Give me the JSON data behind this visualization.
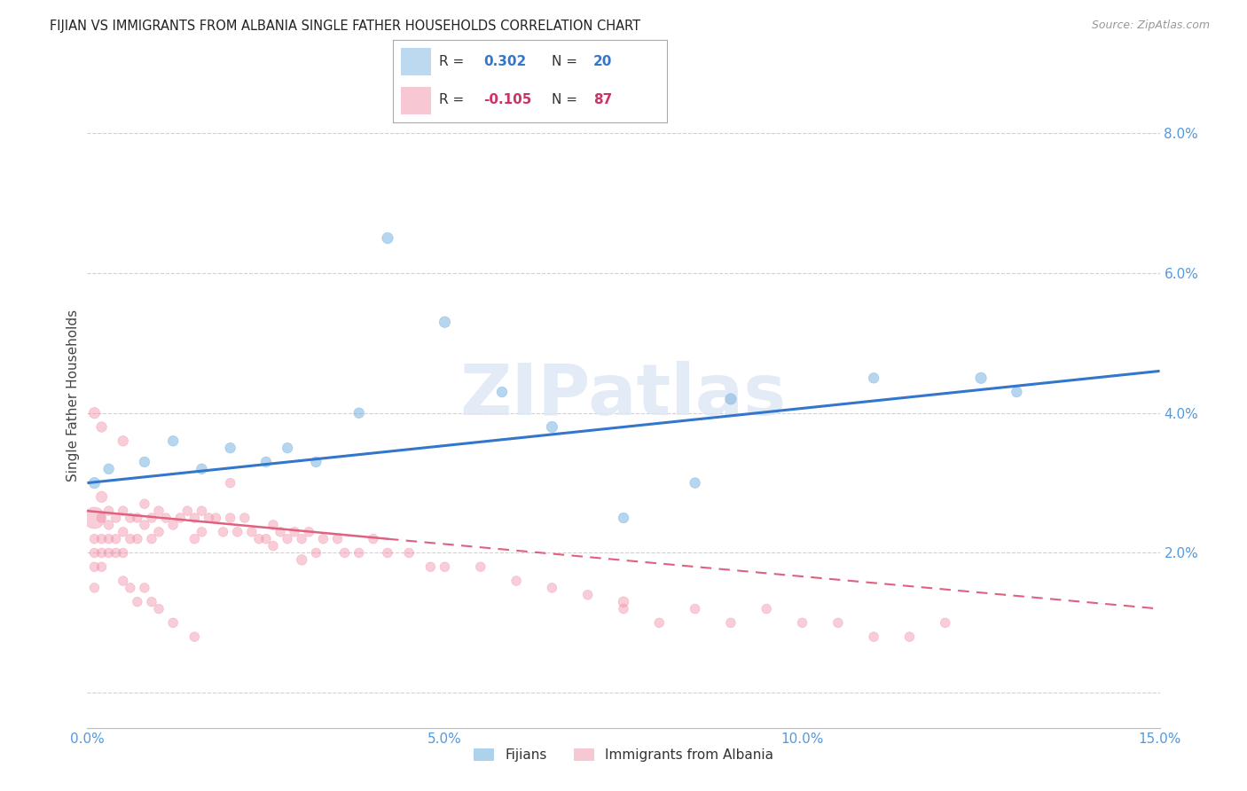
{
  "title": "FIJIAN VS IMMIGRANTS FROM ALBANIA SINGLE FATHER HOUSEHOLDS CORRELATION CHART",
  "source": "Source: ZipAtlas.com",
  "ylabel": "Single Father Households",
  "xlim": [
    0.0,
    0.15
  ],
  "ylim": [
    -0.005,
    0.09
  ],
  "xticks": [
    0.0,
    0.05,
    0.1,
    0.15
  ],
  "xtick_labels": [
    "0.0%",
    "5.0%",
    "10.0%",
    "15.0%"
  ],
  "yticks": [
    0.0,
    0.02,
    0.04,
    0.06,
    0.08
  ],
  "ytick_labels": [
    "",
    "2.0%",
    "4.0%",
    "6.0%",
    "8.0%"
  ],
  "fijian_color": "#7ab4e0",
  "albania_color": "#f090a8",
  "fijian_scatter": {
    "x": [
      0.001,
      0.003,
      0.008,
      0.012,
      0.016,
      0.02,
      0.025,
      0.028,
      0.032,
      0.038,
      0.042,
      0.05,
      0.058,
      0.065,
      0.075,
      0.085,
      0.09,
      0.11,
      0.125,
      0.13
    ],
    "y": [
      0.03,
      0.032,
      0.033,
      0.036,
      0.032,
      0.035,
      0.033,
      0.035,
      0.033,
      0.04,
      0.065,
      0.053,
      0.043,
      0.038,
      0.025,
      0.03,
      0.042,
      0.045,
      0.045,
      0.043
    ],
    "s": [
      80,
      70,
      70,
      70,
      70,
      70,
      70,
      70,
      70,
      70,
      80,
      80,
      70,
      80,
      70,
      70,
      80,
      70,
      80,
      70
    ]
  },
  "albania_scatter": {
    "x": [
      0.001,
      0.001,
      0.001,
      0.001,
      0.001,
      0.002,
      0.002,
      0.002,
      0.002,
      0.002,
      0.003,
      0.003,
      0.003,
      0.003,
      0.004,
      0.004,
      0.004,
      0.005,
      0.005,
      0.005,
      0.006,
      0.006,
      0.007,
      0.007,
      0.008,
      0.008,
      0.009,
      0.009,
      0.01,
      0.01,
      0.011,
      0.012,
      0.013,
      0.014,
      0.015,
      0.015,
      0.016,
      0.016,
      0.017,
      0.018,
      0.019,
      0.02,
      0.02,
      0.021,
      0.022,
      0.023,
      0.024,
      0.025,
      0.026,
      0.026,
      0.027,
      0.028,
      0.029,
      0.03,
      0.031,
      0.032,
      0.033,
      0.035,
      0.036,
      0.038,
      0.04,
      0.042,
      0.045,
      0.048,
      0.05,
      0.055,
      0.06,
      0.065,
      0.07,
      0.075,
      0.08,
      0.085,
      0.09,
      0.095,
      0.1,
      0.105,
      0.11,
      0.115,
      0.12,
      0.005,
      0.006,
      0.007,
      0.008,
      0.009,
      0.01,
      0.012,
      0.015
    ],
    "y": [
      0.025,
      0.022,
      0.02,
      0.018,
      0.015,
      0.028,
      0.025,
      0.022,
      0.02,
      0.018,
      0.026,
      0.024,
      0.022,
      0.02,
      0.025,
      0.022,
      0.02,
      0.026,
      0.023,
      0.02,
      0.025,
      0.022,
      0.025,
      0.022,
      0.027,
      0.024,
      0.025,
      0.022,
      0.026,
      0.023,
      0.025,
      0.024,
      0.025,
      0.026,
      0.025,
      0.022,
      0.026,
      0.023,
      0.025,
      0.025,
      0.023,
      0.03,
      0.025,
      0.023,
      0.025,
      0.023,
      0.022,
      0.022,
      0.024,
      0.021,
      0.023,
      0.022,
      0.023,
      0.022,
      0.023,
      0.02,
      0.022,
      0.022,
      0.02,
      0.02,
      0.022,
      0.02,
      0.02,
      0.018,
      0.018,
      0.018,
      0.016,
      0.015,
      0.014,
      0.012,
      0.01,
      0.012,
      0.01,
      0.012,
      0.01,
      0.01,
      0.008,
      0.008,
      0.01,
      0.016,
      0.015,
      0.013,
      0.015,
      0.013,
      0.012,
      0.01,
      0.008
    ],
    "s": [
      300,
      60,
      60,
      60,
      60,
      80,
      60,
      60,
      60,
      60,
      60,
      60,
      60,
      60,
      60,
      60,
      60,
      60,
      60,
      60,
      60,
      60,
      60,
      60,
      60,
      60,
      60,
      60,
      60,
      60,
      60,
      60,
      60,
      60,
      60,
      60,
      60,
      60,
      60,
      60,
      60,
      60,
      60,
      60,
      60,
      60,
      60,
      60,
      60,
      60,
      60,
      60,
      60,
      60,
      60,
      60,
      60,
      60,
      60,
      60,
      60,
      60,
      60,
      60,
      60,
      60,
      60,
      60,
      60,
      60,
      60,
      60,
      60,
      60,
      60,
      60,
      60,
      60,
      60,
      60,
      60,
      60,
      60,
      60,
      60,
      60,
      60
    ]
  },
  "albania_outliers": {
    "x": [
      0.001,
      0.002,
      0.005,
      0.03,
      0.075
    ],
    "y": [
      0.04,
      0.038,
      0.036,
      0.019,
      0.013
    ],
    "s": [
      80,
      70,
      70,
      70,
      70
    ]
  },
  "fijian_line": {
    "x0": 0.0,
    "y0": 0.03,
    "x1": 0.15,
    "y1": 0.046
  },
  "albania_line_solid": {
    "x0": 0.0,
    "y0": 0.026,
    "x1": 0.042,
    "y1": 0.022
  },
  "albania_line_dash": {
    "x0": 0.042,
    "y0": 0.022,
    "x1": 0.15,
    "y1": 0.012
  },
  "watermark": "ZIPatlas",
  "background_color": "#ffffff",
  "tick_color": "#5599dd",
  "grid_color": "#cccccc"
}
